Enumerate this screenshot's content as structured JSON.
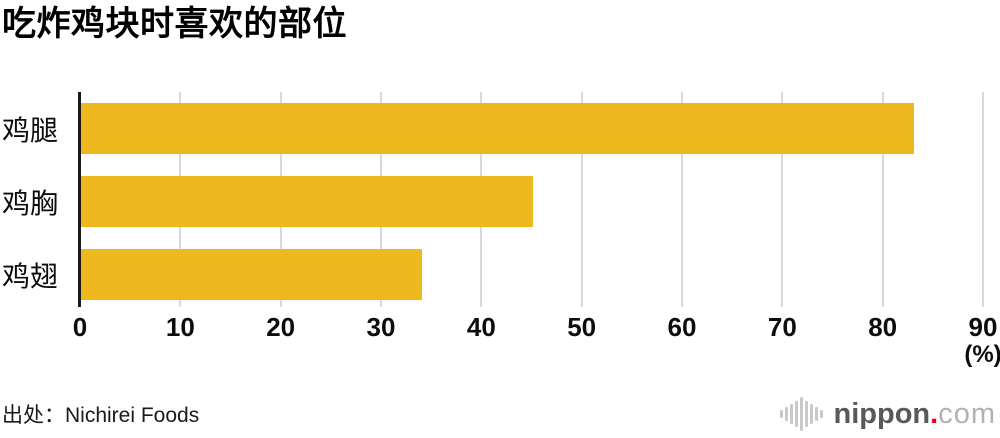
{
  "chart_data": {
    "type": "bar",
    "orientation": "horizontal",
    "title": "吃炸鸡块时喜欢的部位",
    "categories": [
      "鸡腿",
      "鸡胸",
      "鸡翅"
    ],
    "values": [
      83,
      45,
      34
    ],
    "xlabel": "(%)",
    "ylabel": "",
    "xlim": [
      0,
      90
    ],
    "xticks": [
      0,
      10,
      20,
      30,
      40,
      50,
      60,
      70,
      80,
      90
    ],
    "grid": true,
    "legend": false,
    "colors": {
      "bar": "#efb81e",
      "gridline": "#d9d9d9",
      "axis": "#1a1a1a",
      "text": "#111111"
    }
  },
  "footer": {
    "source": "出处：Nichirei Foods",
    "logo": {
      "icon": "waveform-bars-icon",
      "name": "nippon",
      "dot": ".",
      "tld": "com",
      "colors": {
        "name": "#58595b",
        "dot": "#e60012",
        "tld": "#b2b2b3",
        "icon": "#c8c9ca"
      }
    }
  }
}
